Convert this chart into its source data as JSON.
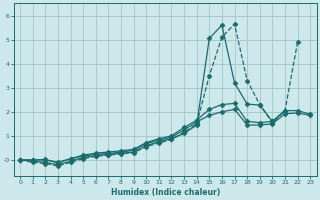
{
  "xlabel": "Humidex (Indice chaleur)",
  "bg_color": "#cce8ea",
  "grid_color": "#aac8cc",
  "line_color": "#1a6b6b",
  "xlim": [
    -0.5,
    23.5
  ],
  "ylim": [
    -0.65,
    6.5
  ],
  "xticks": [
    0,
    1,
    2,
    3,
    4,
    5,
    6,
    7,
    8,
    9,
    10,
    11,
    12,
    13,
    14,
    15,
    16,
    17,
    18,
    19,
    20,
    21,
    22,
    23
  ],
  "yticks": [
    0,
    1,
    2,
    3,
    4,
    5,
    6
  ],
  "ytick_labels": [
    "-0",
    "1",
    "2",
    "3",
    "4",
    "5",
    "6"
  ],
  "series": [
    {
      "x": [
        0,
        1,
        2,
        3,
        4,
        5,
        6,
        7,
        8,
        9,
        10,
        11,
        12,
        13,
        14,
        15,
        16,
        17,
        18,
        19,
        20,
        21,
        22
      ],
      "y": [
        0.0,
        -0.1,
        -0.15,
        -0.25,
        -0.1,
        0.05,
        0.15,
        0.2,
        0.25,
        0.3,
        0.55,
        0.7,
        0.85,
        1.15,
        1.5,
        3.5,
        5.1,
        5.65,
        3.3,
        2.3,
        1.55,
        2.05,
        4.9
      ],
      "marker": "D",
      "markersize": 2.5,
      "linestyle": "--",
      "linewidth": 0.9
    },
    {
      "x": [
        0,
        1,
        2,
        3,
        4,
        5,
        6,
        7,
        8,
        9,
        10,
        11,
        12,
        13,
        14,
        15,
        16,
        17,
        18,
        19,
        20,
        21
      ],
      "y": [
        0.0,
        -0.05,
        -0.1,
        -0.2,
        -0.05,
        0.1,
        0.18,
        0.22,
        0.28,
        0.32,
        0.6,
        0.75,
        0.88,
        1.1,
        1.45,
        5.05,
        5.6,
        3.2,
        2.32,
        2.28,
        1.6,
        2.05
      ],
      "marker": "D",
      "markersize": 2.5,
      "linestyle": "-",
      "linewidth": 0.9
    },
    {
      "x": [
        0,
        1,
        2,
        3,
        4,
        5,
        6,
        7,
        8,
        9,
        10,
        11,
        12,
        13,
        14,
        15,
        16,
        17,
        18,
        19,
        20,
        21,
        22,
        23
      ],
      "y": [
        0.0,
        0.0,
        0.02,
        -0.12,
        0.05,
        0.2,
        0.28,
        0.33,
        0.38,
        0.44,
        0.72,
        0.88,
        1.0,
        1.35,
        1.65,
        2.1,
        2.3,
        2.35,
        1.6,
        1.55,
        1.6,
        2.05,
        2.05,
        1.9
      ],
      "marker": "D",
      "markersize": 2.5,
      "linestyle": "-",
      "linewidth": 0.9
    },
    {
      "x": [
        0,
        1,
        2,
        3,
        4,
        5,
        6,
        7,
        8,
        9,
        10,
        11,
        12,
        13,
        14,
        15,
        16,
        17,
        18,
        19,
        20,
        21,
        22,
        23
      ],
      "y": [
        0.0,
        0.0,
        0.0,
        -0.1,
        0.05,
        0.16,
        0.23,
        0.27,
        0.32,
        0.4,
        0.68,
        0.82,
        0.94,
        1.25,
        1.58,
        1.85,
        2.0,
        2.1,
        1.45,
        1.45,
        1.5,
        1.92,
        1.95,
        1.85
      ],
      "marker": "D",
      "markersize": 2.5,
      "linestyle": "-",
      "linewidth": 0.9
    }
  ]
}
